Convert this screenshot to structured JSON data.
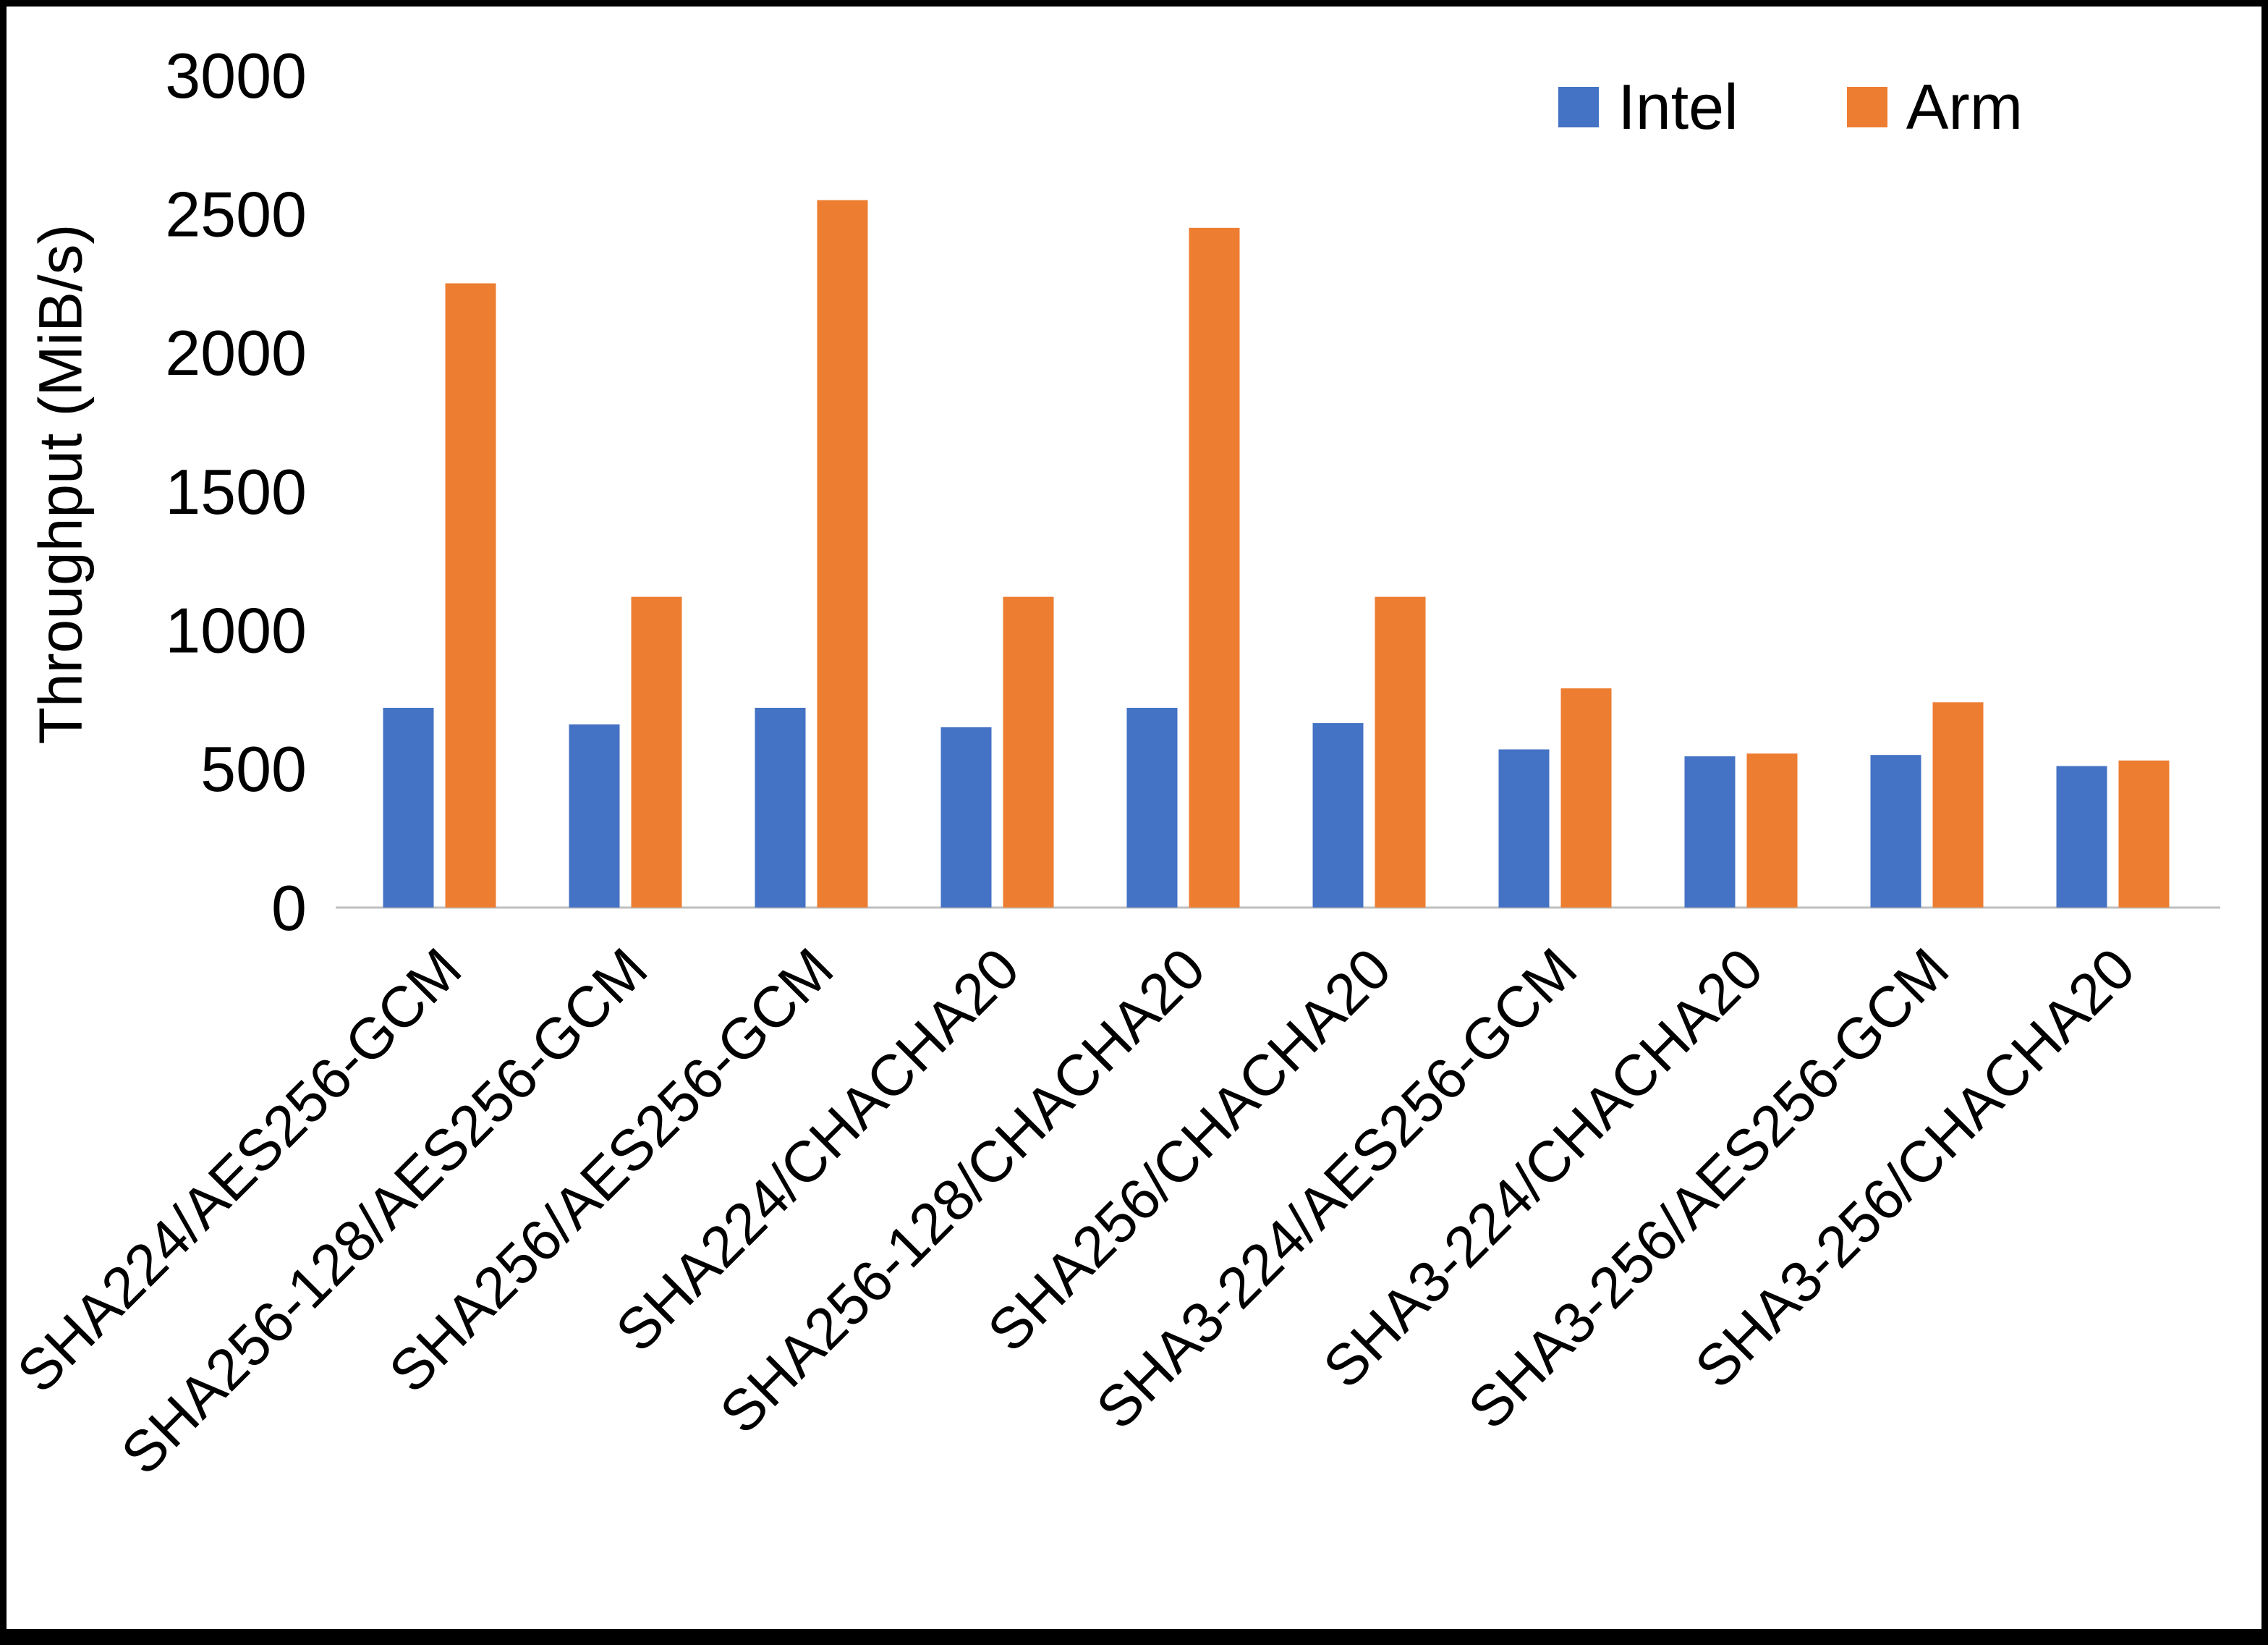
{
  "chart_data": {
    "type": "bar",
    "title": "",
    "xlabel": "",
    "ylabel": "Throughput (MiB/s)",
    "ylim": [
      0,
      3000
    ],
    "ytick_step": 500,
    "grid": false,
    "legend_position": "top-right",
    "categories": [
      "SHA224/AES256-GCM",
      "SHA256-128/AES256-GCM",
      "SHA256/AES256-GCM",
      "SHA224/CHACHA20",
      "SHA256-128/CHACHA20",
      "SHA256/CHACHA20",
      "SHA3-224/AES256-GCM",
      "SHA3-224/CHACHA20",
      "SHA3-256/AES256-GCM",
      "SHA3-256/CHACHA20"
    ],
    "series": [
      {
        "name": "Intel",
        "color": "#4472C4",
        "values": [
          720,
          660,
          720,
          650,
          720,
          665,
          570,
          545,
          550,
          510
        ]
      },
      {
        "name": "Arm",
        "color": "#ED7D31",
        "values": [
          2250,
          1120,
          2550,
          1120,
          2450,
          1120,
          790,
          555,
          740,
          530
        ]
      }
    ],
    "colors": {
      "axis_line": "#bfbfbf",
      "text": "#000000"
    }
  }
}
